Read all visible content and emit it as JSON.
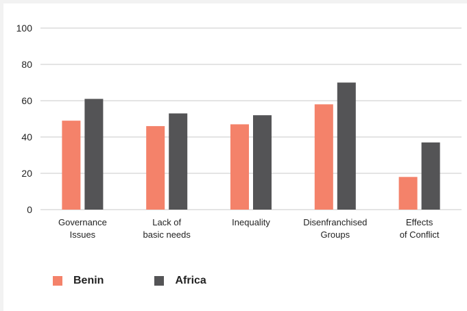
{
  "chart_data": {
    "type": "bar",
    "categories": [
      [
        "Governance",
        "Issues"
      ],
      [
        "Lack of",
        "basic needs"
      ],
      [
        "Inequality"
      ],
      [
        "Disenfranchised",
        "Groups"
      ],
      [
        "Effects",
        "of Conflict"
      ]
    ],
    "series": [
      {
        "name": "Benin",
        "color": "#f4826a",
        "values": [
          49,
          46,
          47,
          58,
          18
        ]
      },
      {
        "name": "Africa",
        "color": "#545456",
        "values": [
          61,
          53,
          52,
          70,
          37
        ]
      }
    ],
    "ylim": [
      0,
      100
    ],
    "yticks": [
      0,
      20,
      40,
      60,
      80,
      100
    ],
    "grid": true,
    "legend": "bottom-left",
    "title": "",
    "xlabel": "",
    "ylabel": ""
  }
}
